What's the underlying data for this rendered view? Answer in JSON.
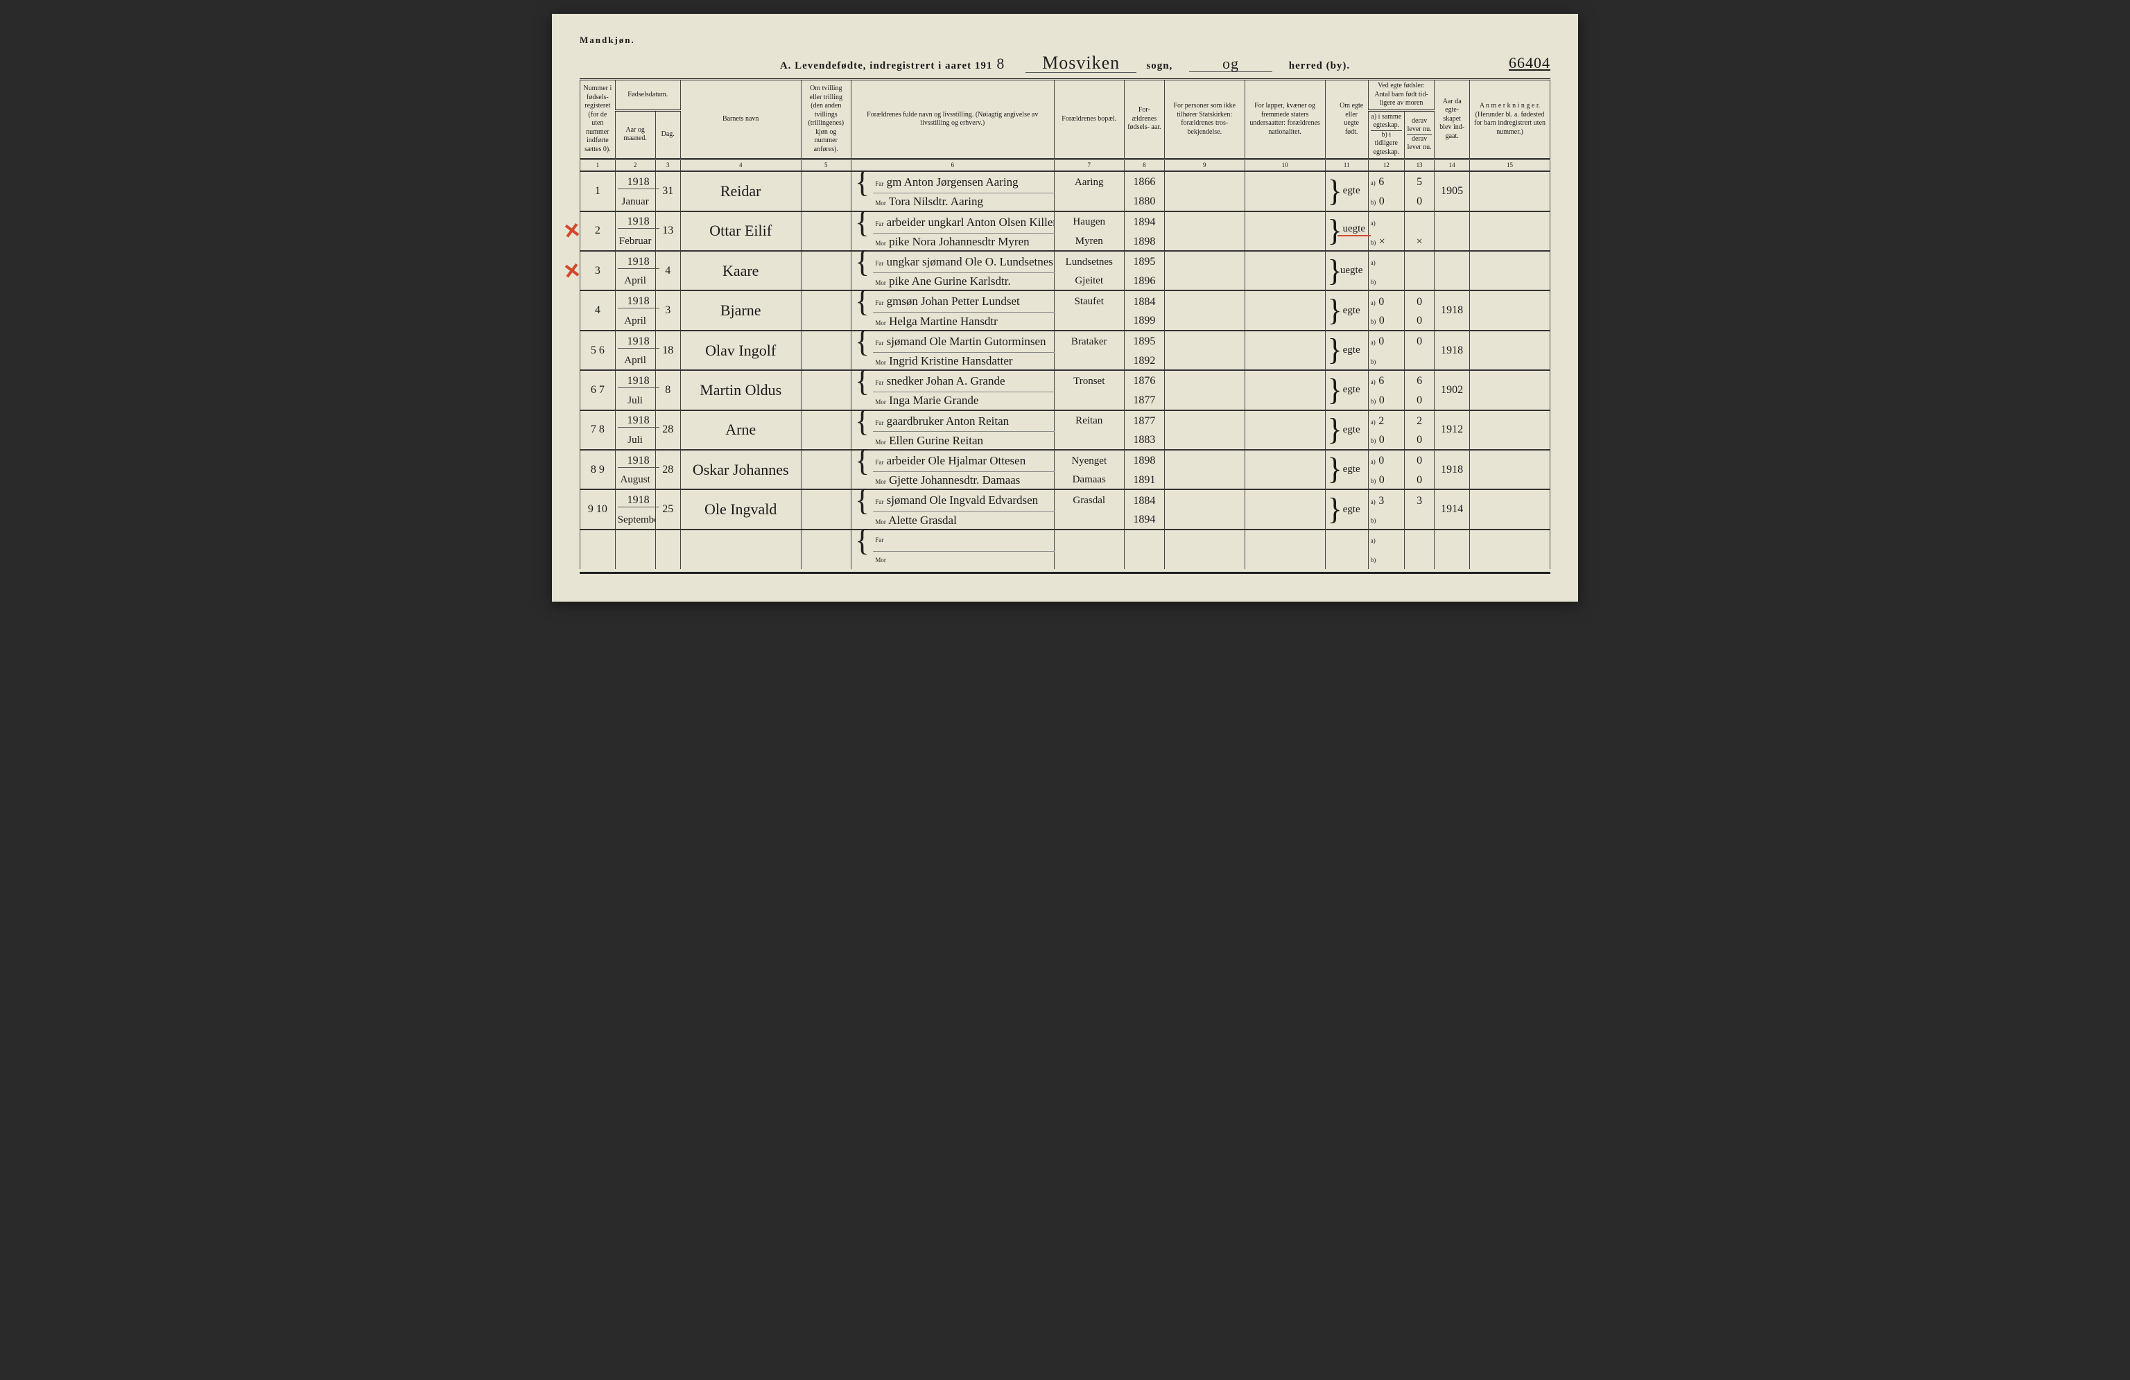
{
  "gender_heading": "Mandkjøn.",
  "title_prefix": "A. Levendefødte, indregistrert i aaret 191",
  "year_suffix": "8",
  "title_sogn_label": "sogn,",
  "title_herred_label": "herred (by).",
  "parish": "Mosviken",
  "district": "og",
  "page_number": "66404",
  "headers": {
    "c1": "Nummer i fødsels- registeret (for de uten nummer indførte sættes 0).",
    "c2_top": "Fødselsdatum.",
    "c2a": "Aar og maaned.",
    "c2b": "Dag.",
    "c4": "Barnets navn",
    "c5": "Om tvilling eller trilling (den anden tvillings (trillingenes) kjøn og nummer anføres).",
    "c6": "Forældrenes fulde navn og livsstilling. (Nøiagtig angivelse av livsstilling og erhverv.)",
    "c7": "Forældrenes bopæl.",
    "c8": "For- ældrenes fødsels- aar.",
    "c9": "For personer som ikke tilhører Statskirken: forældrenes tros- bekjendelse.",
    "c10": "For lapper, kvæner og fremmede staters undersaatter: forældrenes nationalitet.",
    "c11": "Om egte eller uegte født.",
    "c12_top": "Ved egte fødsler: Antal barn født tid- ligere av moren",
    "c12a": "a) i samme egteskap.",
    "c12b": "b) i tidligere egteskap.",
    "c13a": "derav lever nu.",
    "c13b": "derav lever nu.",
    "c14": "Aar da egte- skapet blev ind- gaat.",
    "c15": "A n m e r k n i n g e r. (Herunder bl. a. fødested for barn indregistrert uten nummer.)"
  },
  "colnums": [
    "1",
    "2",
    "3",
    "4",
    "5",
    "6",
    "7",
    "8",
    "9",
    "10",
    "11",
    "12",
    "13",
    "14",
    "15"
  ],
  "far_label": "Far",
  "mor_label": "Mor",
  "ab_a": "a)",
  "ab_b": "b)",
  "rows": [
    {
      "no": "1",
      "year": "1918",
      "month": "Januar",
      "day": "31",
      "child": "Reidar",
      "far": "gm Anton Jørgensen Aaring",
      "mor": "Tora Nilsdtr. Aaring",
      "place": "Aaring",
      "far_yr": "1866",
      "mor_yr": "1880",
      "legit": "egte",
      "a": "6",
      "a_live": "5",
      "b": "0",
      "b_live": "0",
      "marr": "1905",
      "redx": false
    },
    {
      "no": "2",
      "year": "1918",
      "month": "Februar",
      "day": "13",
      "child": "Ottar Eilif",
      "far": "arbeider ungkarl Anton Olsen Killen",
      "mor": "pike Nora Johannesdtr Myren",
      "place_far": "Haugen",
      "place_mor": "Myren",
      "far_yr": "1894",
      "mor_yr": "1898",
      "legit": "uegte",
      "a": "",
      "a_live": "",
      "b": "×",
      "b_live": "×",
      "marr": "",
      "redx": true,
      "legit_red": true
    },
    {
      "no": "3",
      "year": "1918",
      "month": "April",
      "day": "4",
      "child": "Kaare",
      "far": "ungkar sjømand Ole O. Lundsetnes",
      "mor": "pike Ane Gurine Karlsdtr.",
      "place_far": "Lundsetnes",
      "place_mor": "Gjeitet",
      "far_yr": "1895",
      "mor_yr": "1896",
      "legit": "uegte",
      "a": "",
      "a_live": "",
      "b": "",
      "b_live": "",
      "marr": "",
      "redx": true
    },
    {
      "no": "4",
      "year": "1918",
      "month": "April",
      "day": "3",
      "child": "Bjarne",
      "far": "gmsøn Johan Petter Lundset",
      "mor": "Helga Martine Hansdtr",
      "place": "Staufet",
      "far_yr": "1884",
      "mor_yr": "1899",
      "legit": "egte",
      "a": "0",
      "a_live": "0",
      "b": "0",
      "b_live": "0",
      "marr": "1918",
      "redx": false
    },
    {
      "no": "5 6",
      "year": "1918",
      "month": "April",
      "day": "18",
      "child": "Olav Ingolf",
      "far": "sjømand Ole Martin Gutorminsen",
      "mor": "Ingrid Kristine Hansdatter",
      "place": "Brataker",
      "far_yr": "1895",
      "mor_yr": "1892",
      "legit": "egte",
      "a": "0",
      "a_live": "0",
      "b": "",
      "b_live": "",
      "marr": "1918",
      "redx": false
    },
    {
      "no": "6 7",
      "year": "1918",
      "month": "Juli",
      "day": "8",
      "child": "Martin Oldus",
      "far": "snedker Johan A. Grande",
      "mor": "Inga Marie Grande",
      "place": "Tronset",
      "far_yr": "1876",
      "mor_yr": "1877",
      "legit": "egte",
      "a": "6",
      "a_live": "6",
      "b": "0",
      "b_live": "0",
      "marr": "1902",
      "redx": false
    },
    {
      "no": "7 8",
      "year": "1918",
      "month": "Juli",
      "day": "28",
      "child": "Arne",
      "far": "gaardbruker Anton Reitan",
      "mor": "Ellen Gurine Reitan",
      "place": "Reitan",
      "far_yr": "1877",
      "mor_yr": "1883",
      "legit": "egte",
      "a": "2",
      "a_live": "2",
      "b": "0",
      "b_live": "0",
      "marr": "1912",
      "redx": false
    },
    {
      "no": "8 9",
      "year": "1918",
      "month": "August",
      "day": "28",
      "child": "Oskar Johannes",
      "far": "arbeider Ole Hjalmar Ottesen",
      "mor": "Gjette Johannesdtr. Damaas",
      "place_far": "Nyenget",
      "place_mor": "Damaas",
      "far_yr": "1898",
      "mor_yr": "1891",
      "legit": "egte",
      "a": "0",
      "a_live": "0",
      "b": "0",
      "b_live": "0",
      "marr": "1918",
      "redx": false
    },
    {
      "no": "9 10",
      "year": "1918",
      "month": "September",
      "day": "25",
      "child": "Ole Ingvald",
      "far": "sjømand Ole Ingvald Edvardsen",
      "mor": "Alette Grasdal",
      "place": "Grasdal",
      "far_yr": "1884",
      "mor_yr": "1894",
      "legit": "egte",
      "a": "3",
      "a_live": "3",
      "b": "",
      "b_live": "",
      "marr": "1914",
      "redx": false
    }
  ]
}
